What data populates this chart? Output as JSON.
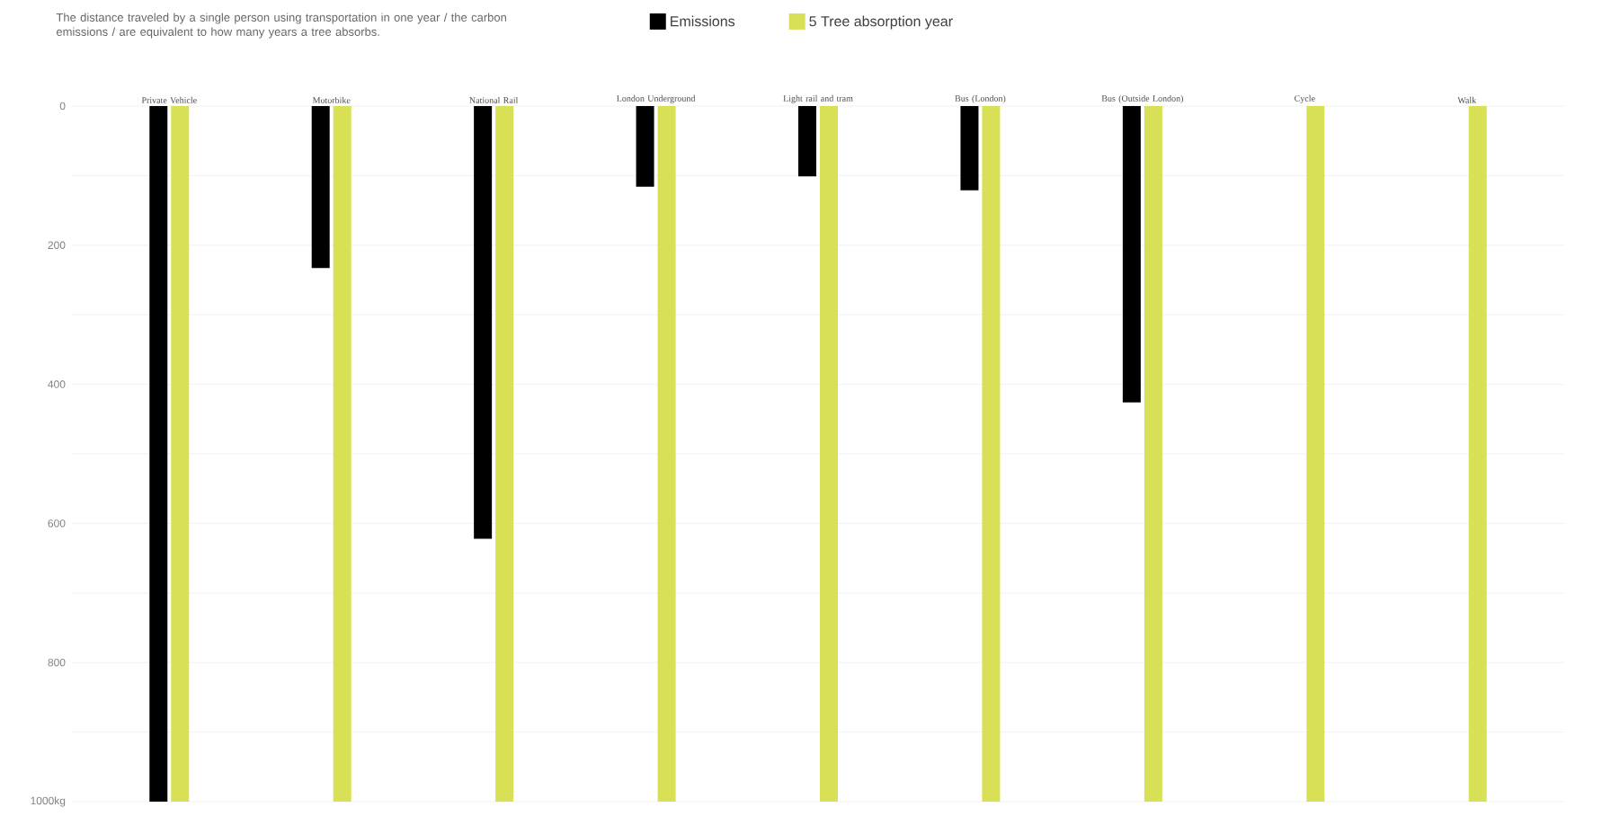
{
  "chart_data": {
    "type": "bar",
    "title": "The distance traveled by a single person using transportation in one year / the carbon emissions / are equivalent to how many years a tree absorbs.",
    "categories": [
      "Private Vehicle",
      "Motorbike",
      "National Rail",
      "London Underground",
      "Light rail and tram",
      "Bus (London)",
      "Bus (Outside London)",
      "Cycle",
      "Walk"
    ],
    "series": [
      {
        "name": "Emissions",
        "color": "#000000",
        "values": [
          1000,
          233,
          622,
          116,
          101,
          121,
          426,
          0,
          0
        ]
      },
      {
        "name": "5 Tree absorption year",
        "color": "#d8e055",
        "values": [
          1000,
          1000,
          1000,
          1000,
          1000,
          1000,
          1000,
          1000,
          1000
        ]
      }
    ],
    "ylim": [
      1000,
      0
    ],
    "yticks": [
      0,
      {
        "value": 100,
        "label": null
      },
      200,
      {
        "value": 300,
        "label": null
      },
      400,
      {
        "value": 500,
        "label": null
      },
      600,
      {
        "value": 700,
        "label": null
      },
      800,
      {
        "value": 900,
        "label": null
      },
      {
        "value": 1000,
        "label": "1000kg"
      }
    ],
    "grid": "y",
    "legend": "top"
  }
}
